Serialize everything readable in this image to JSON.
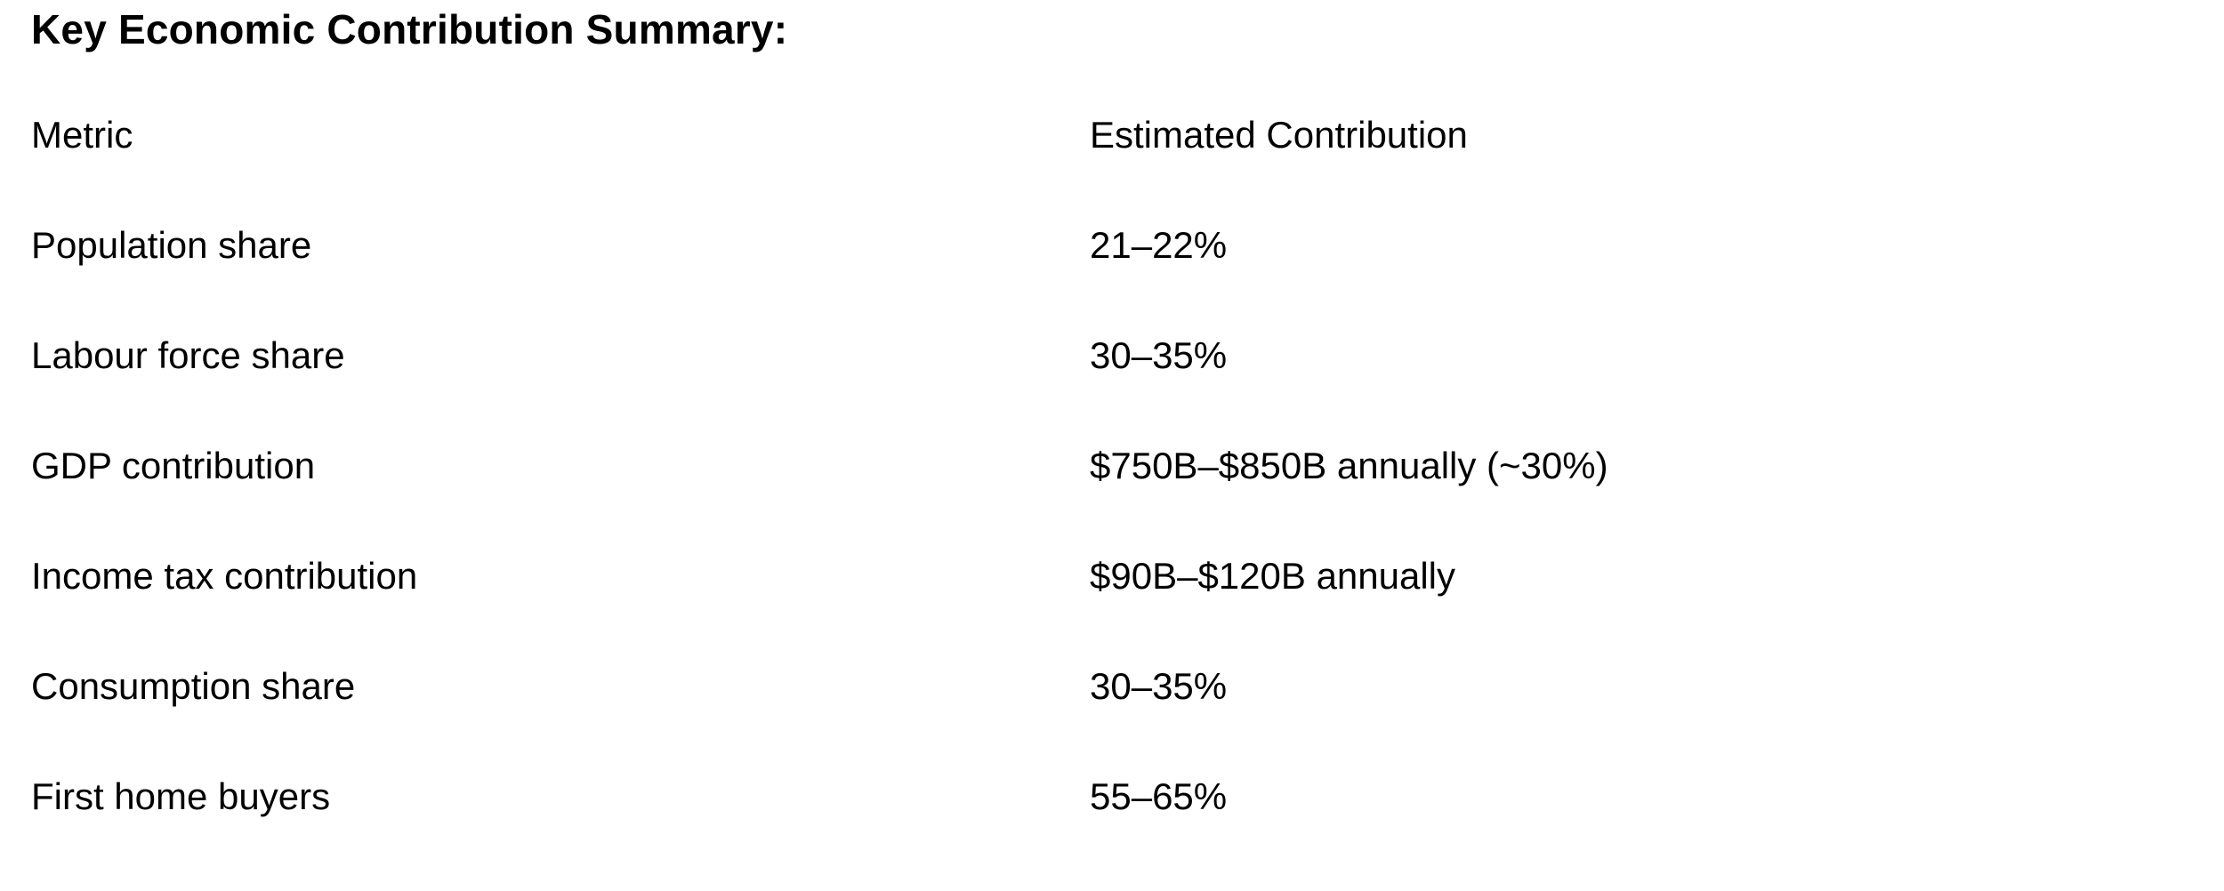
{
  "title": "Key Economic Contribution Summary:",
  "table": {
    "headers": {
      "metric": "Metric",
      "value": "Estimated Contribution"
    },
    "rows": [
      {
        "metric": "Population share",
        "value": "21–22%"
      },
      {
        "metric": "Labour force share",
        "value": "30–35%"
      },
      {
        "metric": "GDP contribution",
        "value": "$750B–$850B annually (~30%)"
      },
      {
        "metric": "Income tax contribution",
        "value": "$90B–$120B annually"
      },
      {
        "metric": "Consumption share",
        "value": "30–35%"
      },
      {
        "metric": "First home buyers",
        "value": "55–65%"
      }
    ]
  }
}
